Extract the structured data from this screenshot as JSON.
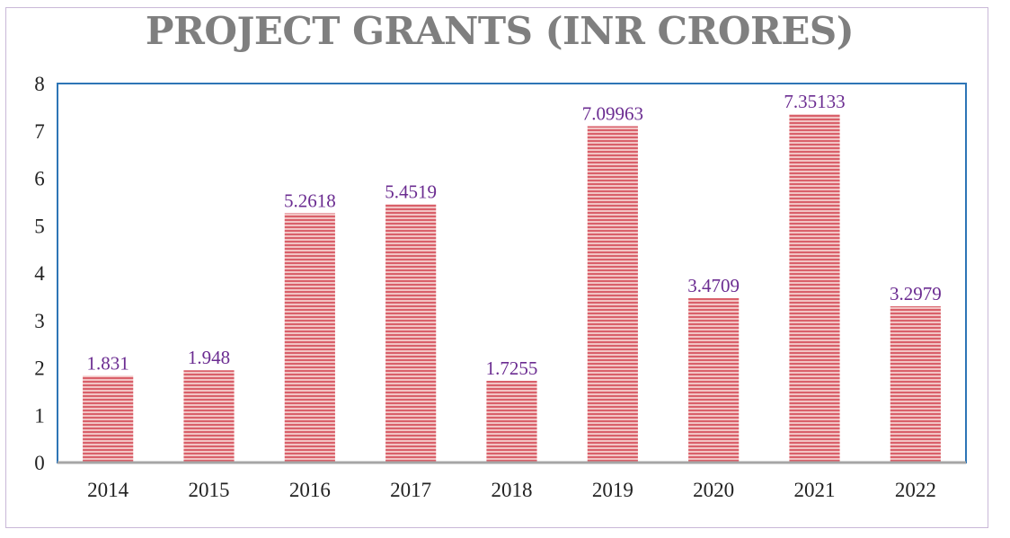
{
  "chart_data": {
    "type": "bar",
    "title": "PROJECT GRANTS (INR CRORES)",
    "categories": [
      "2014",
      "2015",
      "2016",
      "2017",
      "2018",
      "2019",
      "2020",
      "2021",
      "2022"
    ],
    "values": [
      1.831,
      1.948,
      5.2618,
      5.4519,
      1.7255,
      7.09963,
      3.4709,
      7.35133,
      3.2979
    ],
    "data_labels": [
      "1.831",
      "1.948",
      "5.2618",
      "5.4519",
      "1.7255",
      "7.09963",
      "3.4709",
      "7.35133",
      "3.2979"
    ],
    "ylim": [
      0,
      8
    ],
    "yticks": [
      "0",
      "1",
      "2",
      "3",
      "4",
      "5",
      "6",
      "7",
      "8"
    ],
    "xlabel": "",
    "ylabel": "",
    "grid": false,
    "legend": "none",
    "colors": {
      "bar_fill": "#f2c4c4",
      "bar_stripe": "#d9606a",
      "data_label": "#6b2c91",
      "plot_border": "#2e75b6",
      "title": "#7f7f7f"
    }
  }
}
